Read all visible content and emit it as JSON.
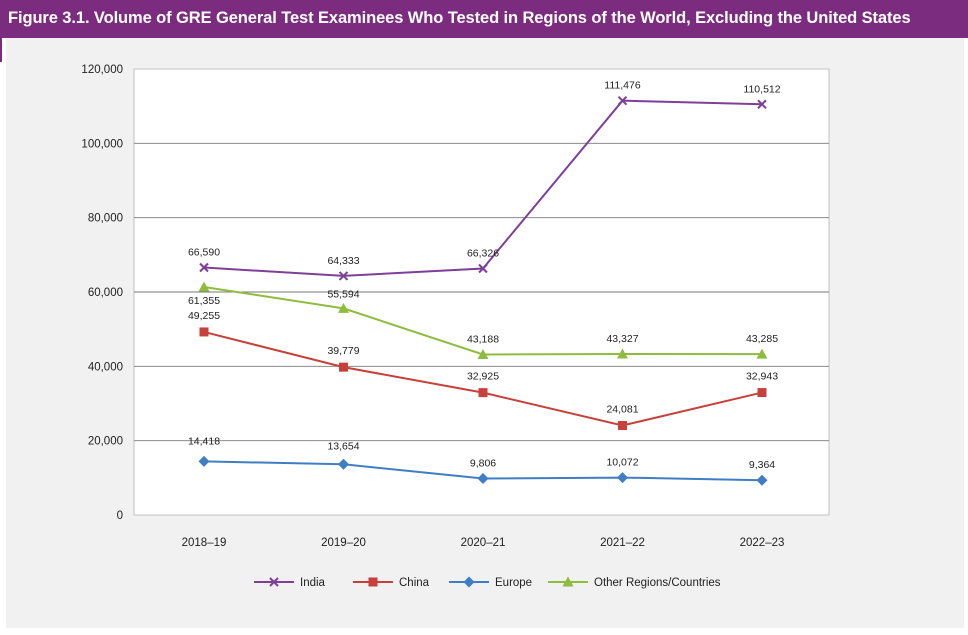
{
  "header": {
    "title": "Figure 3.1. Volume of GRE General Test Examinees Who Tested in Regions of the World, Excluding the United States"
  },
  "colors": {
    "header_bg": "#7b2c7f",
    "panel_bg": "#f1f1f2",
    "india": "#7f3f98",
    "china": "#c8403a",
    "europe": "#3f7dc4",
    "other": "#8fbc3e"
  },
  "chart_data": {
    "type": "line",
    "title": "Figure 3.1. Volume of GRE General Test Examinees Who Tested in Regions of the World, Excluding the United States",
    "xlabel": "",
    "ylabel": "",
    "ylim": [
      0,
      120000
    ],
    "yticks": [
      0,
      20000,
      40000,
      60000,
      80000,
      100000,
      120000
    ],
    "ytick_labels": [
      "0",
      "20,000",
      "40,000",
      "60,000",
      "80,000",
      "100,000",
      "120,000"
    ],
    "categories": [
      "2018–19",
      "2019–20",
      "2020–21",
      "2021–22",
      "2022–23"
    ],
    "grid": true,
    "legend_position": "bottom",
    "series": [
      {
        "name": "India",
        "marker": "x",
        "color": "#7f3f98",
        "values": [
          66590,
          64333,
          66326,
          111476,
          110512
        ],
        "labels": [
          "66,590",
          "64,333",
          "66,326",
          "111,476",
          "110,512"
        ]
      },
      {
        "name": "China",
        "marker": "square",
        "color": "#c8403a",
        "values": [
          49255,
          39779,
          32925,
          24081,
          32943
        ],
        "labels": [
          "49,255",
          "39,779",
          "32,925",
          "24,081",
          "32,943"
        ]
      },
      {
        "name": "Europe",
        "marker": "diamond",
        "color": "#3f7dc4",
        "values": [
          14418,
          13654,
          9806,
          10072,
          9364
        ],
        "labels": [
          "14,418",
          "13,654",
          "9,806",
          "10,072",
          "9,364"
        ]
      },
      {
        "name": "Other Regions/Countries",
        "marker": "triangle",
        "color": "#8fbc3e",
        "values": [
          61355,
          55594,
          43188,
          43327,
          43285
        ],
        "labels": [
          "61,355",
          "55,594",
          "43,188",
          "43,327",
          "43,285"
        ]
      }
    ]
  }
}
